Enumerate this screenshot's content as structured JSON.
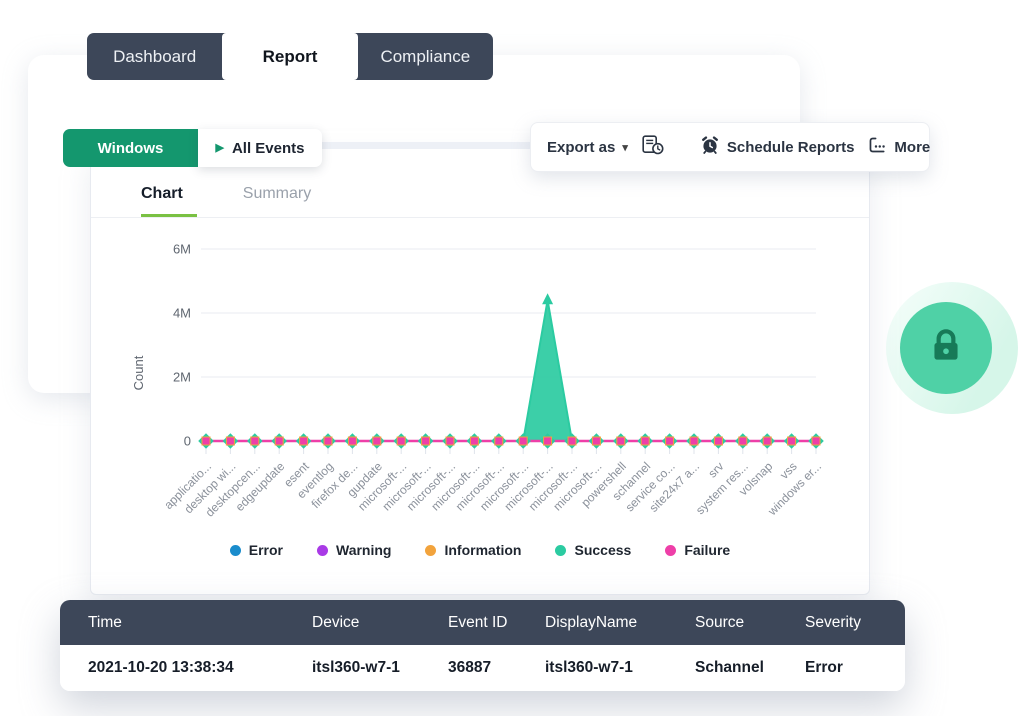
{
  "top_tabs": {
    "items": [
      {
        "label": "Dashboard",
        "active": false
      },
      {
        "label": "Report",
        "active": true
      },
      {
        "label": "Compliance",
        "active": false
      }
    ]
  },
  "filter_bar": {
    "windows_label": "Windows",
    "all_events_label": "All Events"
  },
  "toolbar": {
    "export_label": "Export as",
    "schedule_label": "Schedule Reports",
    "more_label": "More"
  },
  "panel_tabs": {
    "chart_label": "Chart",
    "summary_label": "Summary"
  },
  "icons": {
    "caret_down": "▾",
    "play": "▶"
  },
  "colors": {
    "brand_green": "#14976e",
    "dark_slate": "#3d4759",
    "tab_underline_green": "#7ac143",
    "lock_green": "#177a58",
    "lock_circle": "#4fd1a6"
  },
  "chart_data": {
    "type": "area",
    "title": "",
    "xlabel": "",
    "ylabel": "Count",
    "ylim": [
      0,
      6000000
    ],
    "ytick_labels": [
      "0",
      "2M",
      "4M",
      "6M"
    ],
    "grid": true,
    "legend_position": "bottom",
    "categories": [
      "applicatio...",
      "desktop wi...",
      "desktopcen...",
      "edgeupdate",
      "esent",
      "eventlog",
      "firefox de...",
      "gupdate",
      "microsoft-...",
      "microsoft-...",
      "microsoft-...",
      "microsoft-...",
      "microsoft-...",
      "microsoft-...",
      "microsoft-...",
      "microsoft-...",
      "microsoft-...",
      "powershell",
      "schannel",
      "service co...",
      "site24x7 a...",
      "srv",
      "system res...",
      "volsnap",
      "vss",
      "windows er..."
    ],
    "series": [
      {
        "name": "Error",
        "color": "#1a8ccc",
        "values": [
          0,
          0,
          0,
          0,
          0,
          0,
          0,
          0,
          0,
          0,
          0,
          0,
          0,
          0,
          0,
          0,
          0,
          0,
          0,
          0,
          0,
          0,
          0,
          0,
          0,
          0
        ]
      },
      {
        "name": "Warning",
        "color": "#a93ae6",
        "values": [
          0,
          0,
          0,
          0,
          0,
          0,
          0,
          0,
          0,
          0,
          0,
          0,
          0,
          0,
          0,
          0,
          0,
          0,
          0,
          0,
          0,
          0,
          0,
          0,
          0,
          0
        ]
      },
      {
        "name": "Information",
        "color": "#f2a33c",
        "values": [
          0,
          0,
          0,
          0,
          0,
          0,
          0,
          0,
          0,
          0,
          0,
          0,
          0,
          0,
          0,
          0,
          0,
          0,
          0,
          0,
          0,
          0,
          0,
          0,
          0,
          0
        ]
      },
      {
        "name": "Success",
        "color": "#2bcba1",
        "values": [
          0,
          0,
          0,
          0,
          0,
          0,
          0,
          0,
          0,
          0,
          0,
          0,
          0,
          0,
          4400000,
          0,
          0,
          0,
          0,
          0,
          0,
          0,
          0,
          0,
          0,
          0
        ]
      },
      {
        "name": "Failure",
        "color": "#ee3fa8",
        "values": [
          0,
          0,
          0,
          0,
          0,
          0,
          0,
          0,
          0,
          0,
          0,
          0,
          0,
          0,
          0,
          0,
          0,
          0,
          0,
          0,
          0,
          0,
          0,
          0,
          0,
          0
        ]
      }
    ]
  },
  "table": {
    "columns": [
      "Time",
      "Device",
      "Event ID",
      "DisplayName",
      "Source",
      "Severity"
    ],
    "rows": [
      [
        "2021-10-20 13:38:34",
        "itsl360-w7-1",
        "36887",
        "itsl360-w7-1",
        "Schannel",
        "Error"
      ]
    ]
  }
}
